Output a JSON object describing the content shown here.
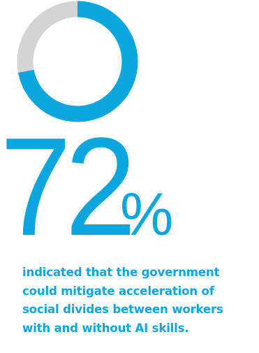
{
  "colors": {
    "accent": "#0ba5df",
    "remainder": "#d4d4d4"
  },
  "chart_data": {
    "type": "pie",
    "variant": "donut",
    "values": [
      72,
      28
    ],
    "colors": [
      "#0ba5df",
      "#d4d4d4"
    ],
    "value_label": "72",
    "unit": "%"
  },
  "caption": {
    "lines": [
      "indicated that the government",
      "could mitigate acceleration of",
      "social divides between workers",
      "with and without AI skills."
    ]
  }
}
